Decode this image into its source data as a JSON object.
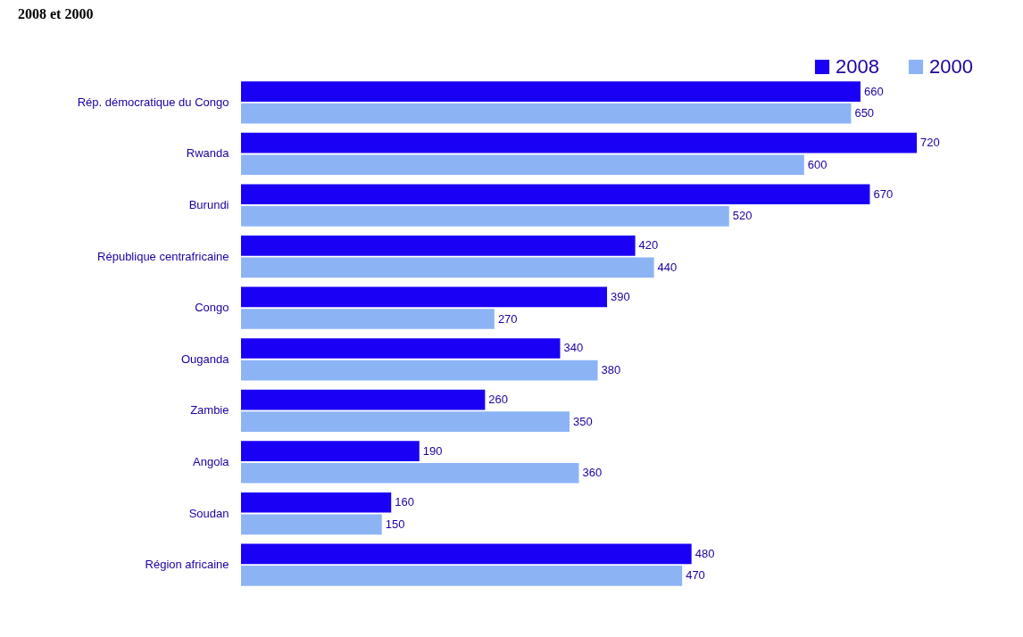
{
  "chart_data": {
    "type": "bar",
    "orientation": "horizontal",
    "title": "2008 et 2000",
    "data_labels": true,
    "legend": "top right",
    "grid": false,
    "categories": [
      "Rép. démocratique du Congo",
      "Rwanda",
      "Burundi",
      "République centrafricaine",
      "Congo",
      "Ouganda",
      "Zambie",
      "Angola",
      "Soudan",
      "Région africaine"
    ],
    "series": [
      {
        "name": "2008",
        "color": "#1a00f5",
        "values": [
          660,
          720,
          670,
          420,
          390,
          340,
          260,
          190,
          160,
          480
        ]
      },
      {
        "name": "2000",
        "color": "#8cb4f5",
        "values": [
          650,
          600,
          520,
          440,
          270,
          380,
          350,
          360,
          150,
          470
        ]
      }
    ]
  }
}
